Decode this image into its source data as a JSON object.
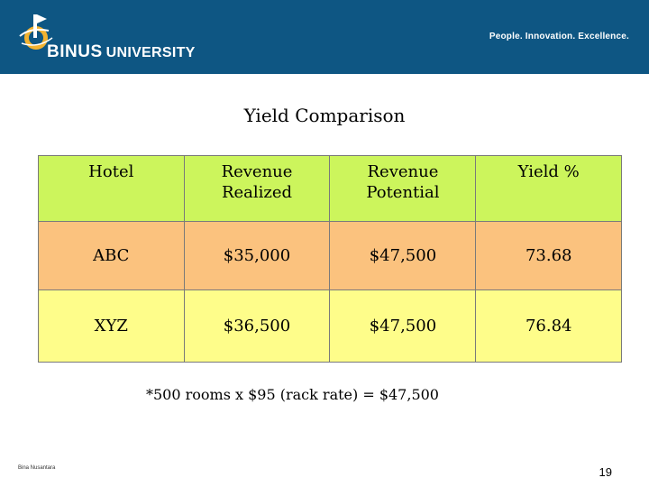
{
  "header": {
    "brand_short": "BINUS",
    "brand_rest": "UNIVERSITY",
    "tagline": "People. Innovation. Excellence.",
    "color": "#0e5683",
    "logo_icon": "binus-logo-icon"
  },
  "slide": {
    "title": "Yield Comparison",
    "table": {
      "columns": [
        [
          "Hotel"
        ],
        [
          "Revenue",
          "Realized"
        ],
        [
          "Revenue",
          "Potential"
        ],
        [
          "Yield %"
        ]
      ],
      "rows": [
        {
          "hotel": "ABC",
          "realized": "$35,000",
          "potential": "$47,500",
          "yield": "73.68",
          "color": "#fbc27e"
        },
        {
          "hotel": "XYZ",
          "realized": "$36,500",
          "potential": "$47,500",
          "yield": "76.84",
          "color": "#fefd8a"
        }
      ],
      "header_color": "#ccf55c"
    },
    "footnote": "*500 rooms x $95 (rack rate) = $47,500"
  },
  "footer": {
    "author": "Bina Nusantara",
    "page_number": "19"
  }
}
